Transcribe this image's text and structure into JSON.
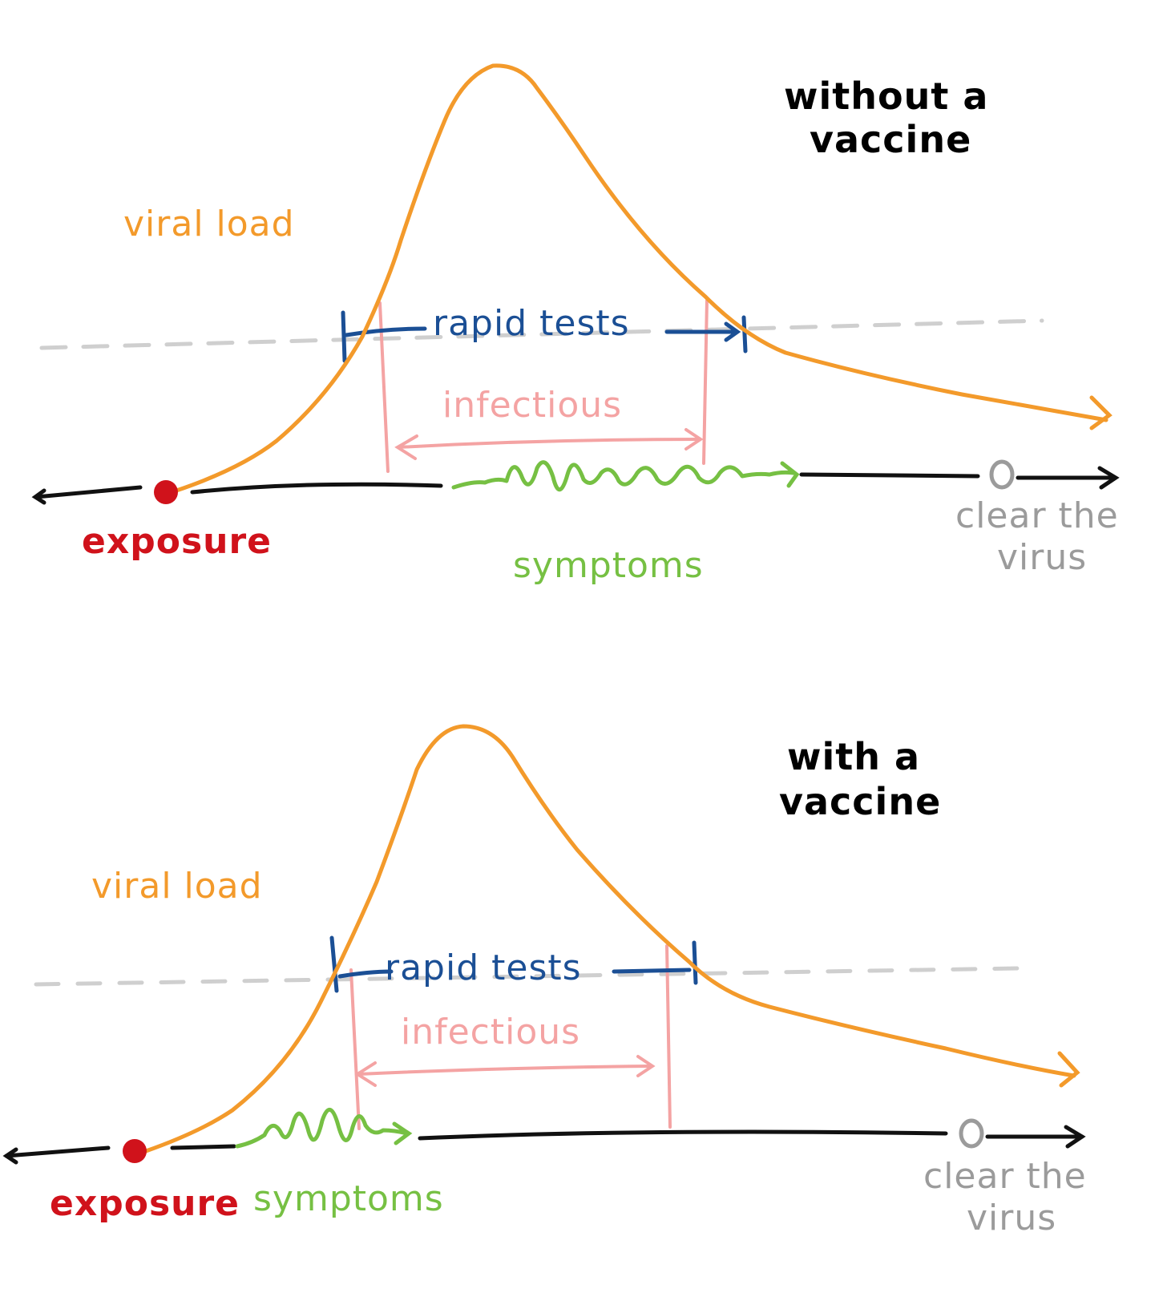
{
  "colors": {
    "viral_load": "#f39a2b",
    "rapid_tests": "#1b4f95",
    "infectious": "#f4a3a3",
    "symptoms": "#76c043",
    "exposure": "#d0121b",
    "clear": "#9b9b9b",
    "threshold": "#cfcfcf",
    "axis": "#111111",
    "title": "#000000"
  },
  "panels": [
    {
      "title_line1": "without a",
      "title_line2": "vaccine",
      "viral_load": "viral load",
      "rapid_tests": "rapid tests",
      "infectious": "infectious",
      "exposure": "exposure",
      "symptoms": "symptoms",
      "clear_line1": "clear the",
      "clear_line2": "virus"
    },
    {
      "title_line1": "with a",
      "title_line2": "vaccine",
      "viral_load": "viral load",
      "rapid_tests": "rapid tests",
      "infectious": "infectious",
      "exposure": "exposure",
      "symptoms": "symptoms",
      "clear_line1": "clear the",
      "clear_line2": "virus"
    }
  ]
}
